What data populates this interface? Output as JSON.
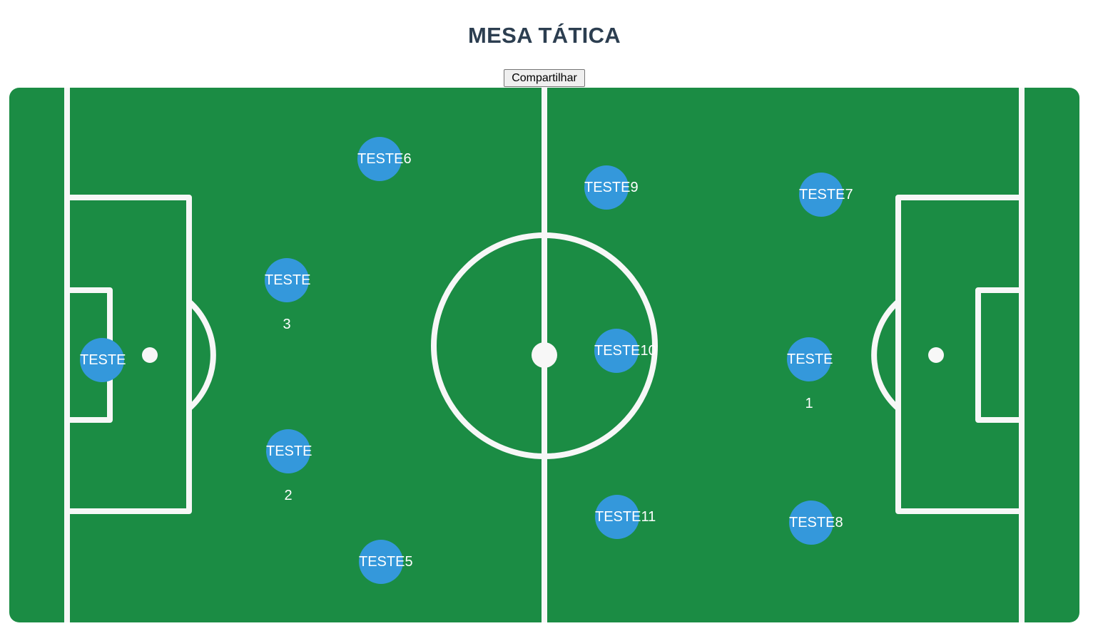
{
  "header": {
    "title": "MESA TÁTICA",
    "share_label": "Compartilhar"
  },
  "colors": {
    "field": "#1b8c44",
    "lines": "#f7f7f7",
    "player": "#3498db",
    "title": "#2c3e50"
  },
  "players": [
    {
      "id": "p1",
      "label": "TESTE",
      "sub": ""
    },
    {
      "id": "p2",
      "label": "TESTE",
      "sub": "3"
    },
    {
      "id": "p3",
      "label": "TESTE",
      "sub": "2"
    },
    {
      "id": "p4",
      "label": "TESTE6",
      "sub": ""
    },
    {
      "id": "p5",
      "label": "TESTE5",
      "sub": ""
    },
    {
      "id": "p6",
      "label": "TESTE9",
      "sub": ""
    },
    {
      "id": "p7",
      "label": "TESTE10",
      "sub": ""
    },
    {
      "id": "p8",
      "label": "TESTE11",
      "sub": ""
    },
    {
      "id": "p9",
      "label": "TESTE7",
      "sub": ""
    },
    {
      "id": "p10",
      "label": "TESTE",
      "sub": "1"
    },
    {
      "id": "p11",
      "label": "TESTE8",
      "sub": ""
    }
  ]
}
